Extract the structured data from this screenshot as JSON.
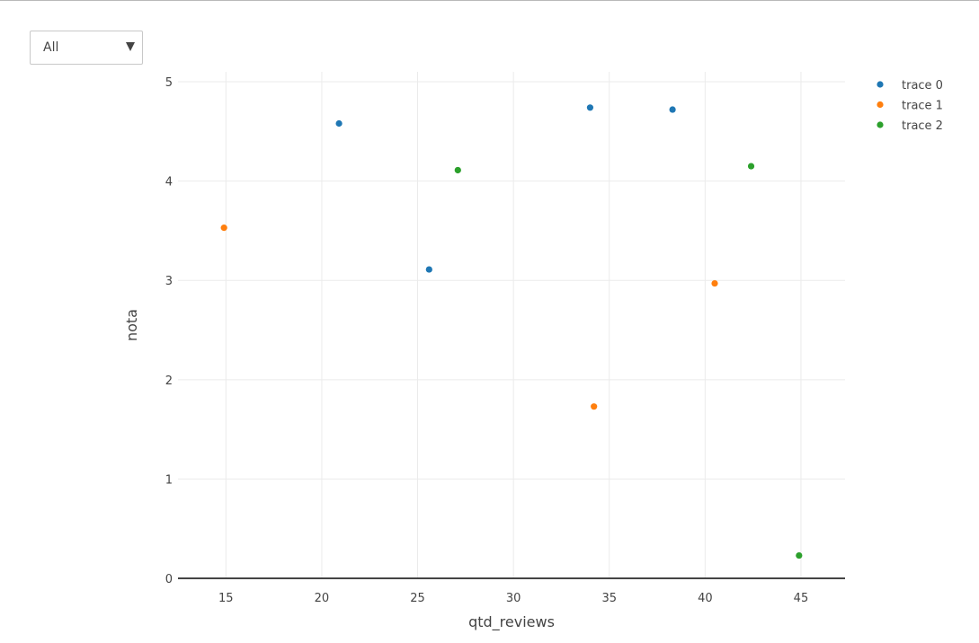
{
  "controls": {
    "dropdown_value": "All"
  },
  "chart_data": {
    "type": "scatter",
    "xlabel": "qtd_reviews",
    "ylabel": "nota",
    "xlim": [
      12.5,
      47.3
    ],
    "ylim": [
      0,
      5.1
    ],
    "x_ticks": [
      15,
      20,
      25,
      30,
      35,
      40,
      45
    ],
    "y_ticks": [
      0,
      1,
      2,
      3,
      4,
      5
    ],
    "grid": true,
    "legend_position": "top-right",
    "series": [
      {
        "name": "trace 0",
        "color": "#1f77b4",
        "points": [
          {
            "x": 20.9,
            "y": 4.58
          },
          {
            "x": 25.6,
            "y": 3.11
          },
          {
            "x": 34.0,
            "y": 4.74
          },
          {
            "x": 38.3,
            "y": 4.72
          }
        ]
      },
      {
        "name": "trace 1",
        "color": "#ff7f0e",
        "points": [
          {
            "x": 14.9,
            "y": 3.53
          },
          {
            "x": 34.2,
            "y": 1.73
          },
          {
            "x": 40.5,
            "y": 2.97
          }
        ]
      },
      {
        "name": "trace 2",
        "color": "#2ca02c",
        "points": [
          {
            "x": 27.1,
            "y": 4.11
          },
          {
            "x": 42.4,
            "y": 4.15
          },
          {
            "x": 44.9,
            "y": 0.23
          }
        ]
      }
    ]
  }
}
